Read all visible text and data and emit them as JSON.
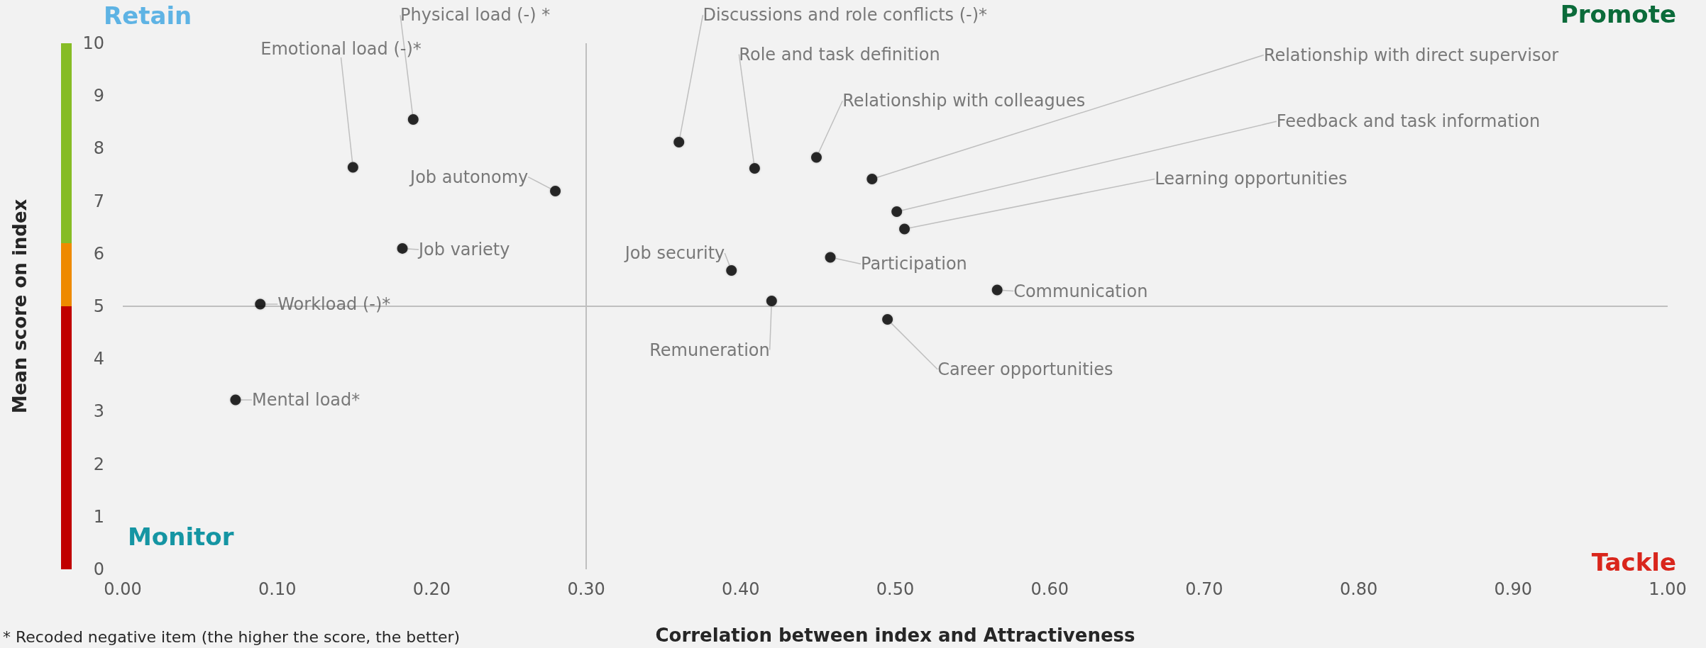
{
  "chart_data": {
    "type": "scatter",
    "xlabel": "Correlation between index and Attractiveness",
    "ylabel": "Mean score on index",
    "xlim": [
      0,
      1
    ],
    "xticks": [
      {
        "value": 0,
        "label": "0.00"
      },
      {
        "value": 0.1,
        "label": "0.10"
      },
      {
        "value": 0.2,
        "label": "0.20"
      },
      {
        "value": 0.3,
        "label": "0.30"
      },
      {
        "value": 0.4,
        "label": "0.40"
      },
      {
        "value": 0.5,
        "label": "0.50"
      },
      {
        "value": 0.6,
        "label": "0.60"
      },
      {
        "value": 0.7,
        "label": "0.70"
      },
      {
        "value": 0.8,
        "label": "0.80"
      },
      {
        "value": 0.9,
        "label": "0.90"
      },
      {
        "value": 1,
        "label": "1.00"
      }
    ],
    "ylim": [
      0,
      10
    ],
    "yticks": [
      0,
      1,
      2,
      3,
      4,
      5,
      6,
      7,
      8,
      9,
      10
    ],
    "grid": false,
    "marker": "circle",
    "legend": false,
    "series": [
      {
        "name": "Physical load (-) *",
        "color": "#000000",
        "x": [
          0.188
        ],
        "values": [
          8.55
        ]
      },
      {
        "name": "Emotional load (-)*",
        "color": "#000000",
        "x": [
          0.149
        ],
        "values": [
          7.64
        ]
      },
      {
        "name": "Job autonomy",
        "color": "#000000",
        "x": [
          0.28
        ],
        "values": [
          7.19
        ]
      },
      {
        "name": "Job variety",
        "color": "#000000",
        "x": [
          0.181
        ],
        "values": [
          6.1
        ]
      },
      {
        "name": "Workload (-)*",
        "color": "#000000",
        "x": [
          0.089
        ],
        "values": [
          5.04
        ]
      },
      {
        "name": "Mental load*",
        "color": "#000000",
        "x": [
          0.073
        ],
        "values": [
          3.22
        ]
      },
      {
        "name": "Discussions and role conflicts (-)*",
        "color": "#000000",
        "x": [
          0.36
        ],
        "values": [
          8.12
        ]
      },
      {
        "name": "Role and task definition",
        "color": "#000000",
        "x": [
          0.409
        ],
        "values": [
          7.62
        ]
      },
      {
        "name": "Relationship with colleagues",
        "color": "#000000",
        "x": [
          0.449
        ],
        "values": [
          7.83
        ]
      },
      {
        "name": "Relationship with direct supervisor",
        "color": "#000000",
        "x": [
          0.485
        ],
        "values": [
          7.42
        ]
      },
      {
        "name": "Feedback and task information",
        "color": "#000000",
        "x": [
          0.501
        ],
        "values": [
          6.8
        ]
      },
      {
        "name": "Learning opportunities",
        "color": "#000000",
        "x": [
          0.506
        ],
        "values": [
          6.47
        ]
      },
      {
        "name": "Job security",
        "color": "#000000",
        "x": [
          0.394
        ],
        "values": [
          5.68
        ]
      },
      {
        "name": "Participation",
        "color": "#000000",
        "x": [
          0.458
        ],
        "values": [
          5.93
        ]
      },
      {
        "name": "Remuneration",
        "color": "#000000",
        "x": [
          0.42
        ],
        "values": [
          5.1
        ]
      },
      {
        "name": "Communication",
        "color": "#000000",
        "x": [
          0.566
        ],
        "values": [
          5.31
        ]
      },
      {
        "name": "Career opportunities",
        "color": "#000000",
        "x": [
          0.495
        ],
        "values": [
          4.75
        ]
      }
    ],
    "ref_lines": [
      {
        "axis": "x",
        "value": 0.3,
        "color": "#bfbfbf"
      },
      {
        "axis": "y",
        "value": 5,
        "color": "#bfbfbf"
      }
    ],
    "annotations": [
      "Retain",
      "Promote",
      "Monitor",
      "Tackle",
      "* Recoded negative item (the higher the score, the better)"
    ]
  }
}
